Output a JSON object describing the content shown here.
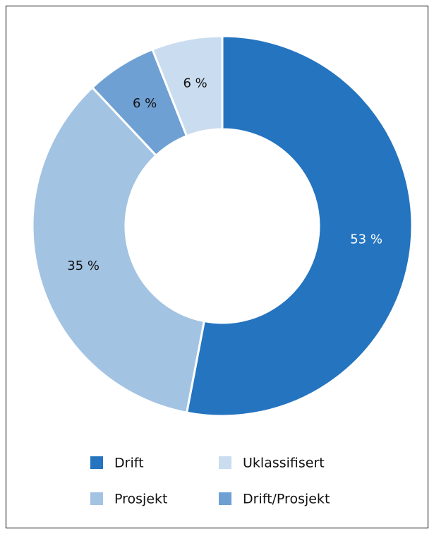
{
  "chart_data": {
    "type": "donut",
    "categories": [
      "Drift",
      "Prosjekt",
      "Drift/Prosjekt",
      "Uklassifisert"
    ],
    "values": [
      53,
      35,
      6,
      6
    ],
    "value_labels": [
      "53 %",
      "35 %",
      "6 %",
      "6 %"
    ],
    "colors": [
      "#2474c0",
      "#a3c3e3",
      "#6fa0d3",
      "#cadcef"
    ],
    "label_colors": [
      "#ffffff",
      "#111111",
      "#111111",
      "#111111"
    ]
  }
}
